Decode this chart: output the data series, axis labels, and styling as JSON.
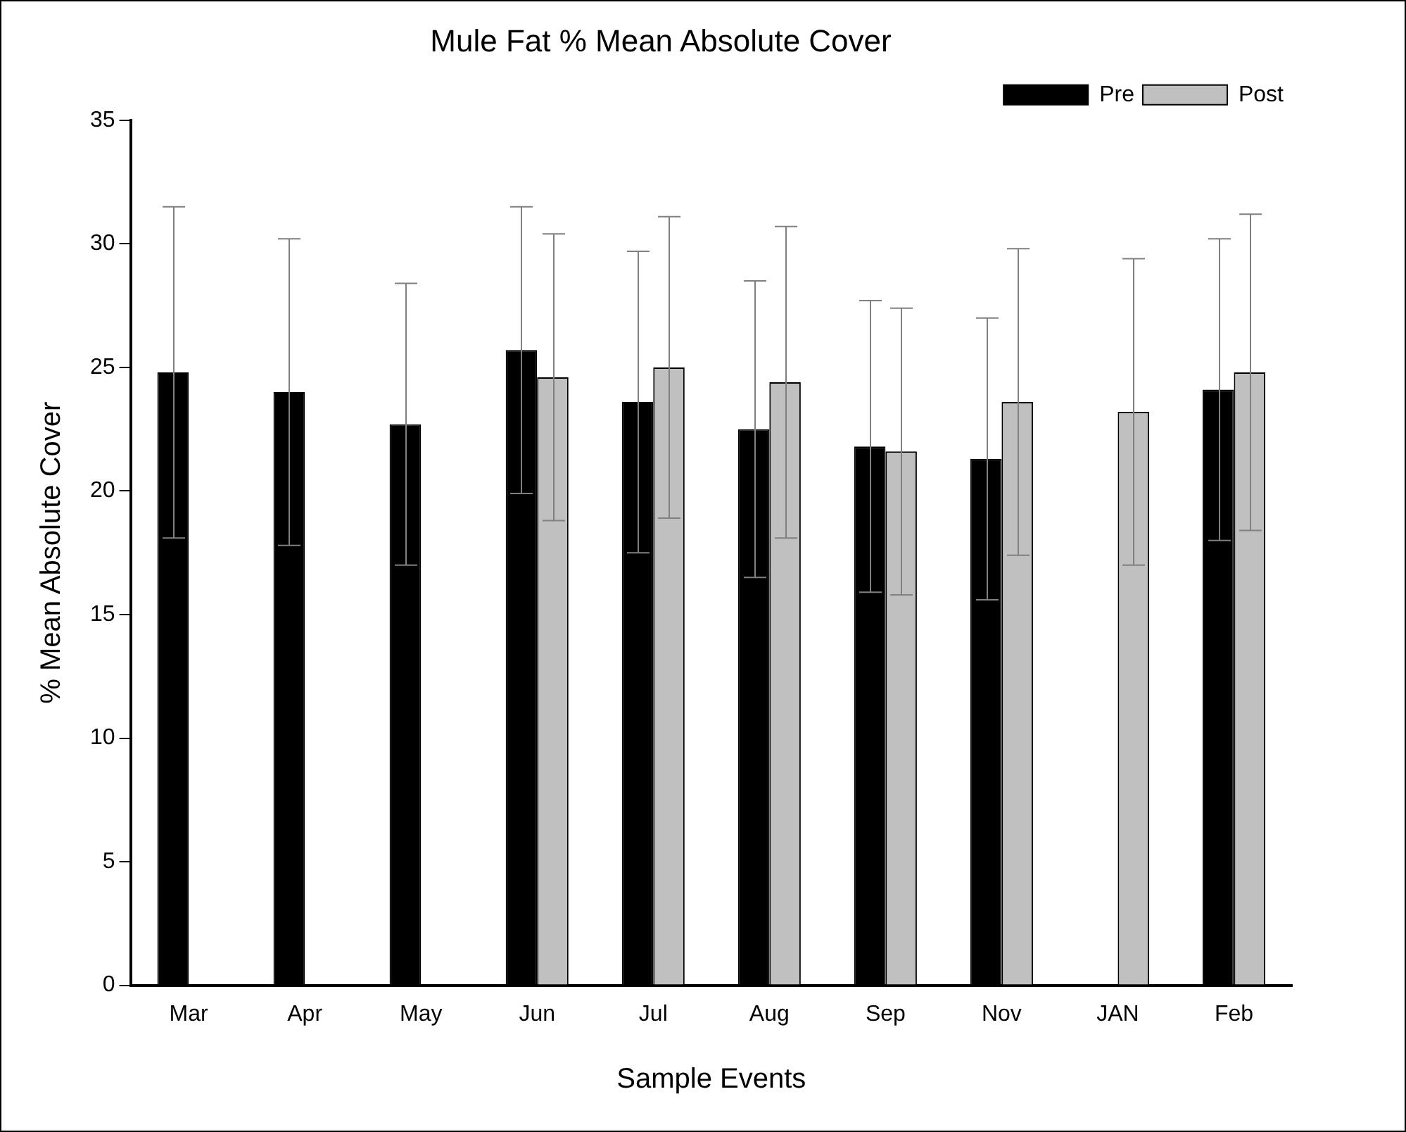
{
  "chart_data": {
    "type": "bar",
    "title": "Mule Fat % Mean Absolute Cover",
    "xlabel": "Sample Events",
    "ylabel": "% Mean Absolute Cover",
    "categories": [
      "Mar",
      "Apr",
      "May",
      "Jun",
      "Jul",
      "Aug",
      "Sep",
      "Nov",
      "JAN",
      "Feb"
    ],
    "series": [
      {
        "name": "Pre",
        "color": "#000000",
        "values": [
          24.8,
          24.0,
          22.7,
          25.7,
          23.6,
          22.5,
          21.8,
          21.3,
          null,
          24.1
        ],
        "errors": [
          6.7,
          6.2,
          5.7,
          5.8,
          6.1,
          6.0,
          5.9,
          5.7,
          null,
          6.1
        ]
      },
      {
        "name": "Post",
        "color": "#c0c0c0",
        "values": [
          null,
          null,
          null,
          24.6,
          25.0,
          24.4,
          21.6,
          23.6,
          23.2,
          24.8
        ],
        "errors": [
          null,
          null,
          null,
          5.8,
          6.1,
          6.3,
          5.8,
          6.2,
          6.2,
          6.4
        ]
      }
    ],
    "ylim": [
      0,
      35
    ],
    "yticks": [
      0,
      5,
      10,
      15,
      20,
      25,
      30,
      35
    ],
    "grid": false,
    "legend": "top right"
  }
}
